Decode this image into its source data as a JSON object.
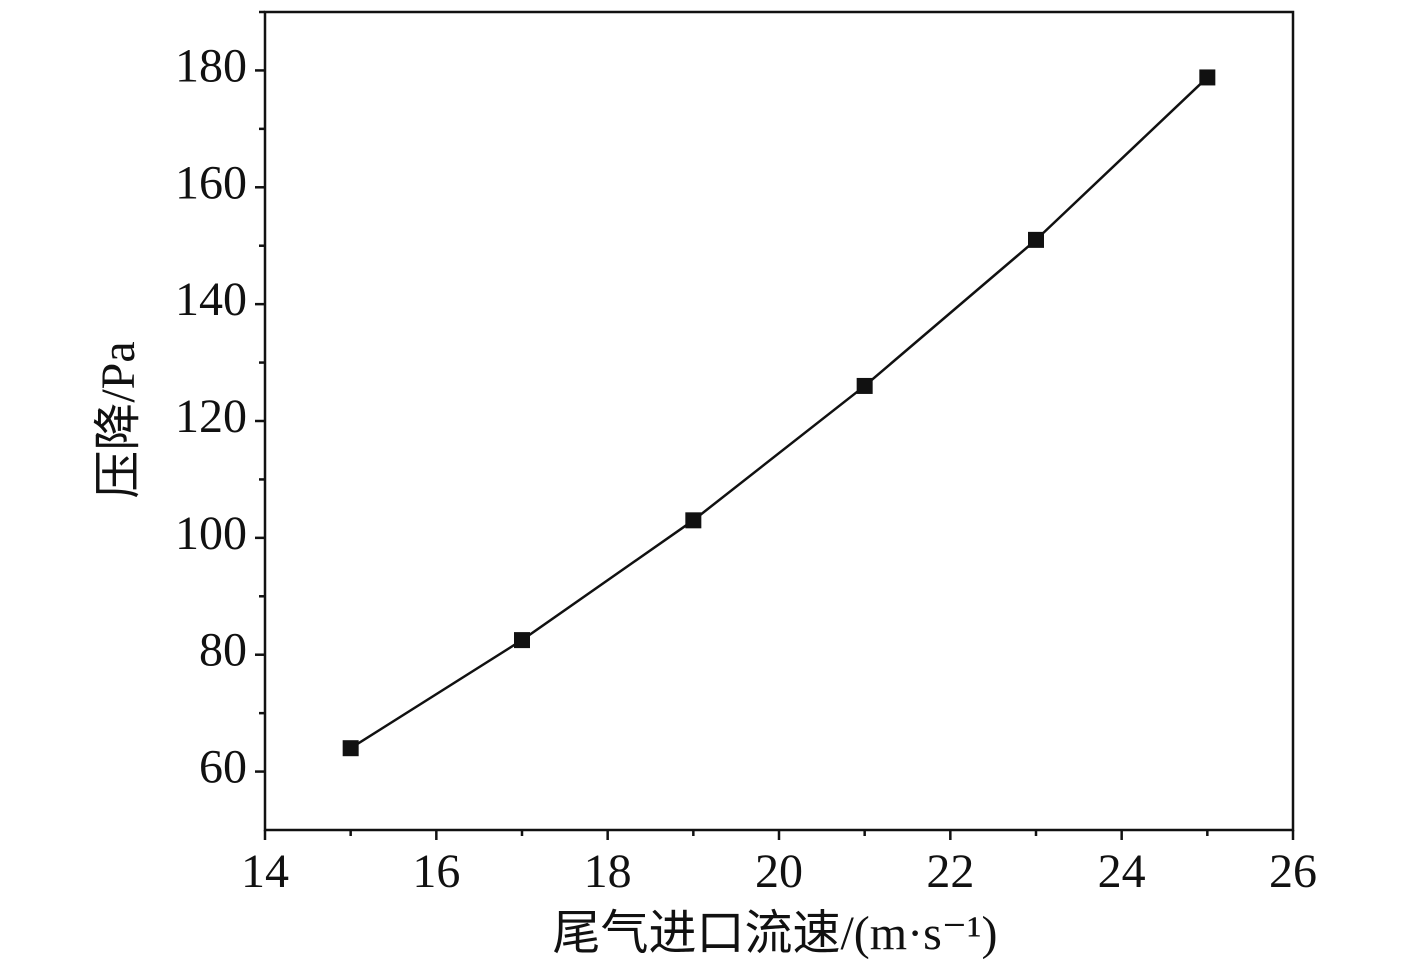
{
  "chart_data": {
    "type": "line",
    "x_label": "尾气进口流速/(m·s⁻¹)",
    "y_label": "压降/Pa",
    "x": [
      15,
      17,
      19,
      21,
      23,
      25
    ],
    "series": [
      {
        "color": "#111111",
        "values": [
          64,
          82.5,
          103,
          126,
          151,
          178.8
        ]
      }
    ],
    "xlim": [
      14,
      26
    ],
    "xticks": [
      14,
      16,
      18,
      20,
      22,
      24,
      26
    ],
    "ylim": [
      50,
      190
    ],
    "yticks": [
      60,
      80,
      100,
      120,
      140,
      160,
      180
    ],
    "grid": false
  }
}
